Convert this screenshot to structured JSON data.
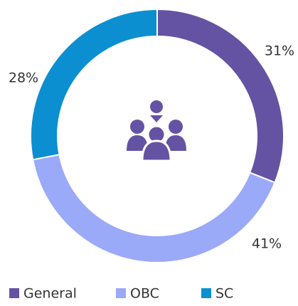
{
  "chart_data": {
    "type": "donut",
    "categories": [
      "General",
      "OBC",
      "SC"
    ],
    "values": [
      31,
      41,
      28
    ],
    "value_labels": [
      "31%",
      "41%",
      "28%"
    ],
    "colors": [
      "#6453a3",
      "#9aa9f8",
      "#0b8fd0"
    ],
    "legend": "bottom"
  }
}
